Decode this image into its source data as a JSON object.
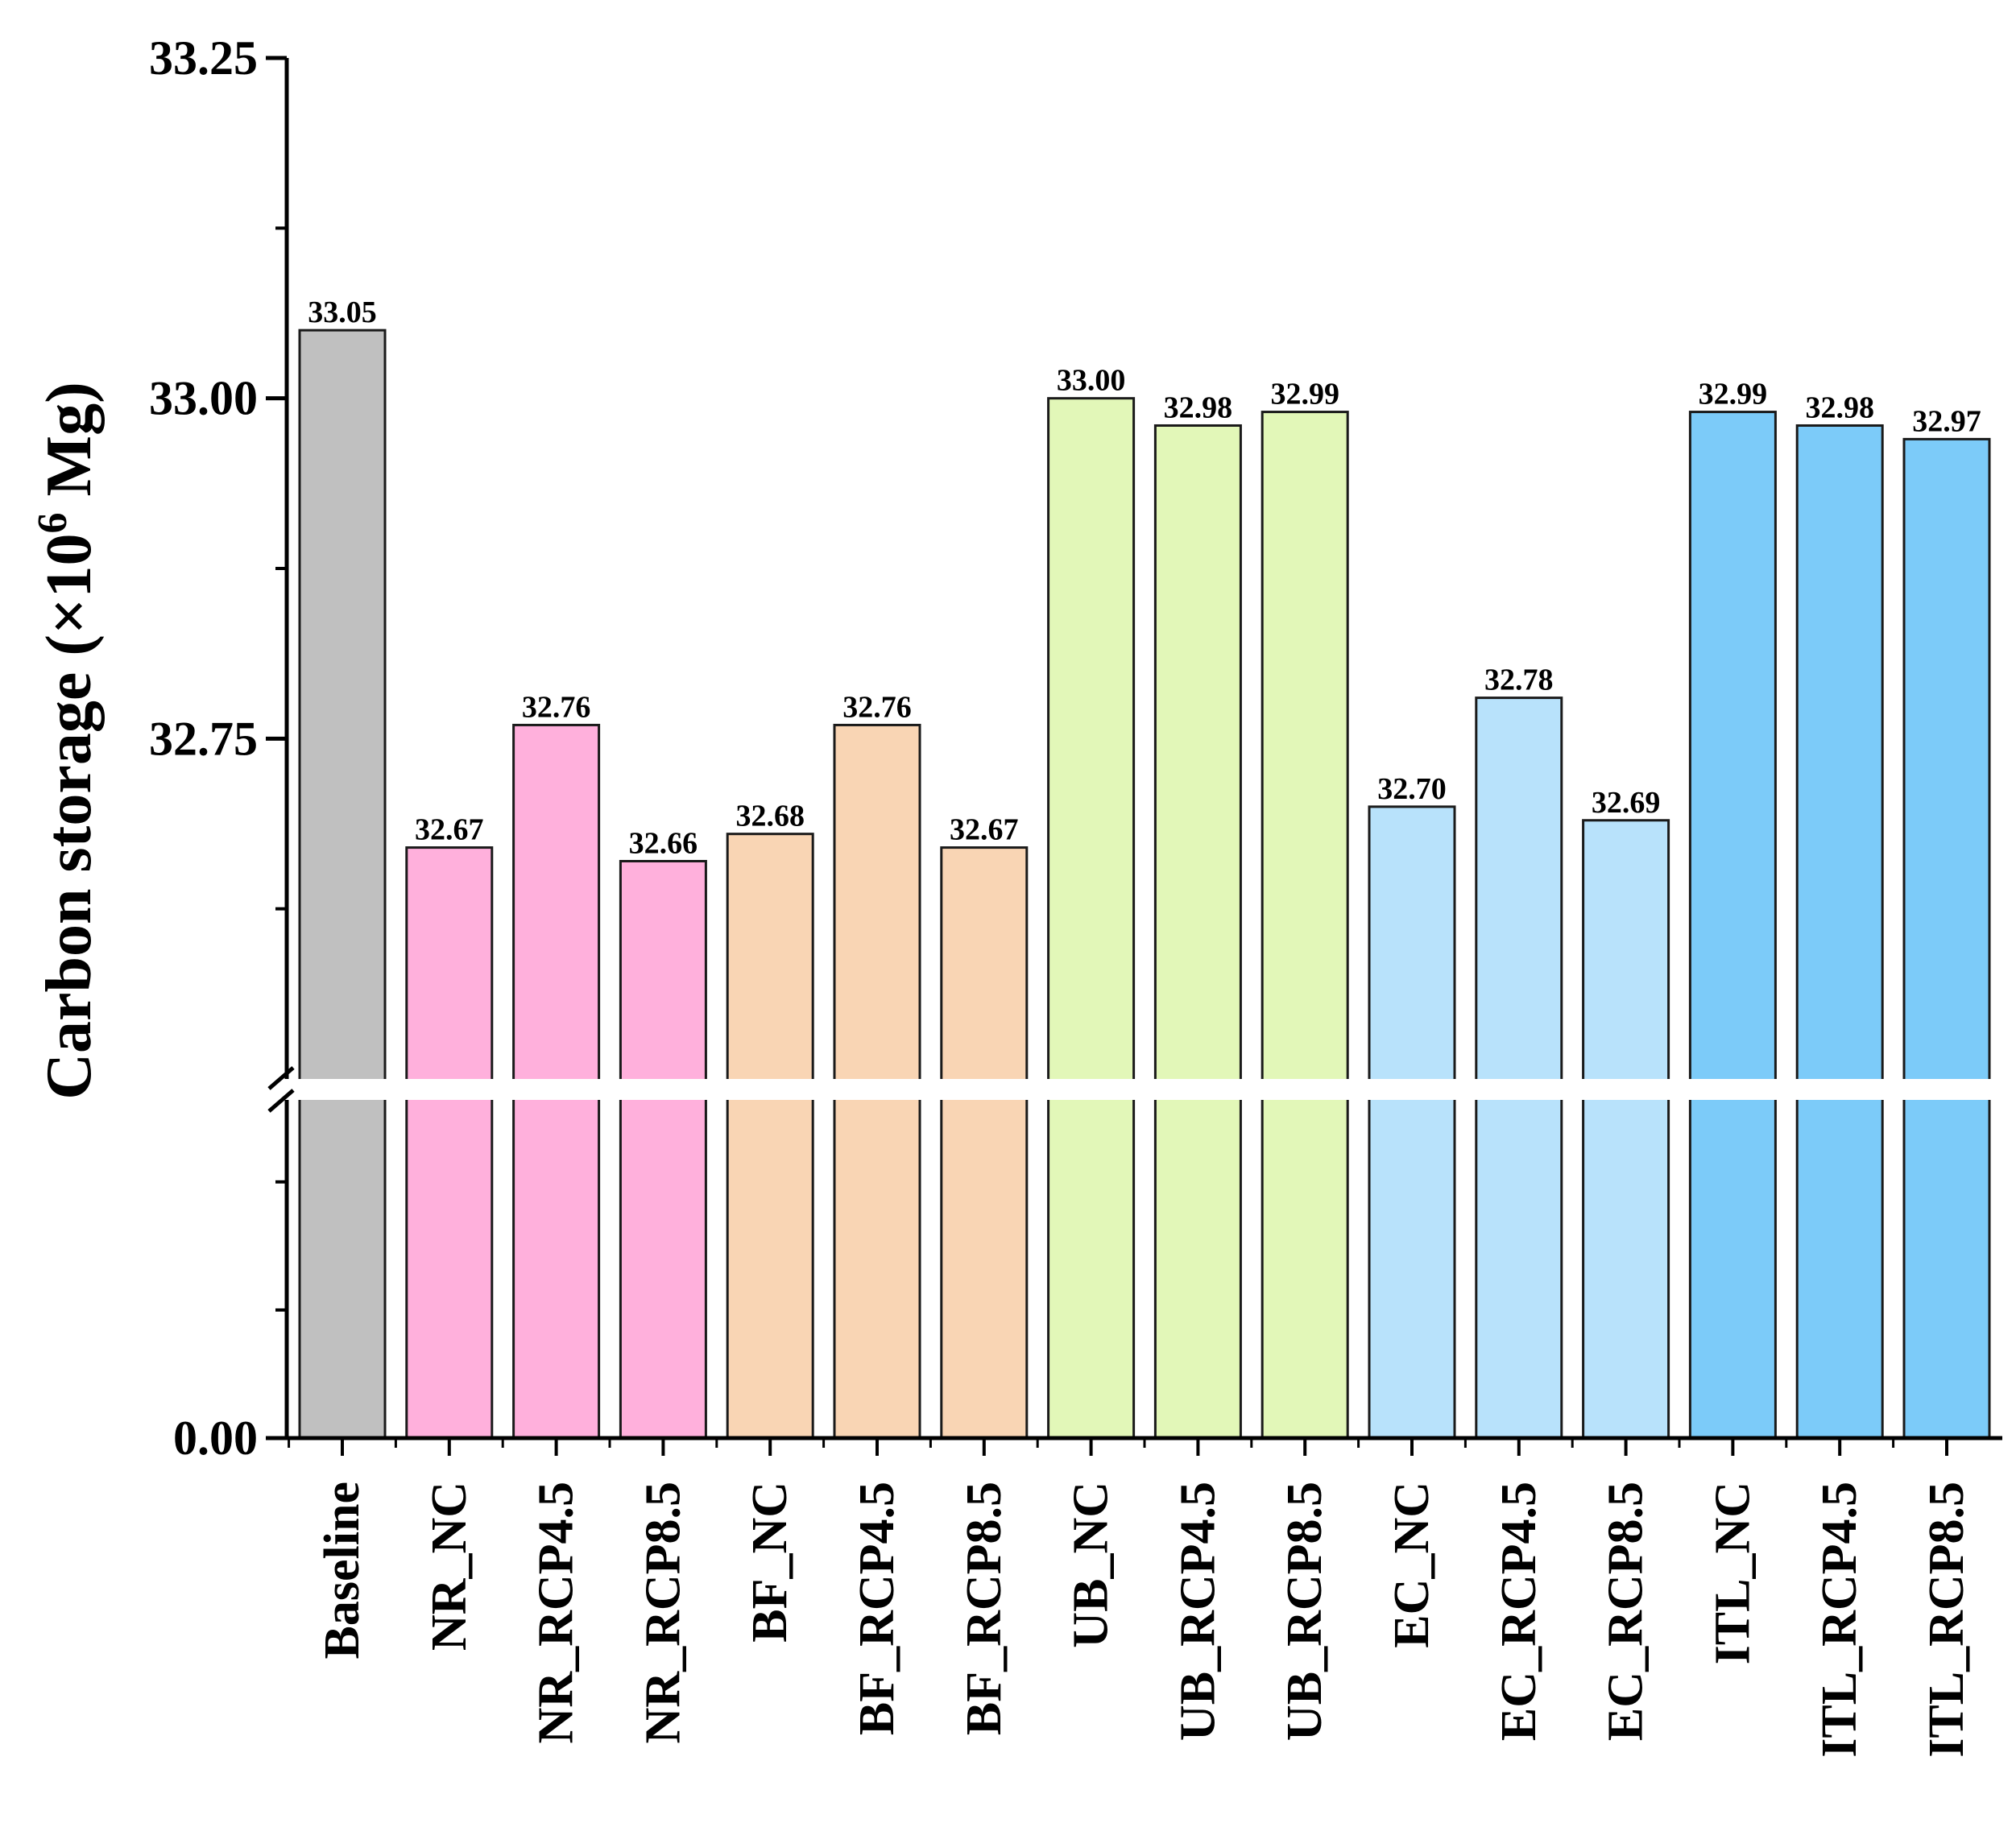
{
  "chart_data": {
    "type": "bar",
    "title": "",
    "xlabel": "",
    "ylabel": "Carbon storage (×10⁶ Mg)",
    "ylabel_main": "Carbon storage (×10",
    "ylabel_sup": "6",
    "ylabel_tail": " Mg)",
    "axis_break": true,
    "ylim_upper_segment": [
      32.5,
      33.25
    ],
    "ylim_lower_segment": [
      0,
      1
    ],
    "y_ticks": [
      {
        "value": 0,
        "label": "0.00"
      },
      {
        "value": 32.75,
        "label": "32.75"
      },
      {
        "value": 33.0,
        "label": "33.00"
      },
      {
        "value": 33.25,
        "label": "33.25"
      }
    ],
    "categories": [
      "Baseline",
      "NR_NC",
      "NR_RCP4.5",
      "NR_RCP8.5",
      "BF_NC",
      "BF_RCP4.5",
      "BF_RCP8.5",
      "UB_NC",
      "UB_RCP4.5",
      "UB_RCP8.5",
      "EC_NC",
      "EC_RCP4.5",
      "EC_RCP8.5",
      "ITL_NC",
      "ITL_RCP4.5",
      "ITL_RCP8.5"
    ],
    "values": [
      33.05,
      32.67,
      32.76,
      32.66,
      32.68,
      32.76,
      32.67,
      33.0,
      32.98,
      32.99,
      32.7,
      32.78,
      32.69,
      32.99,
      32.98,
      32.97
    ],
    "value_labels": [
      "33.05",
      "32.67",
      "32.76",
      "32.66",
      "32.68",
      "32.76",
      "32.67",
      "33.00",
      "32.98",
      "32.99",
      "32.70",
      "32.78",
      "32.69",
      "32.99",
      "32.98",
      "32.97"
    ],
    "bar_colors": [
      "#c0c0c0",
      "#ffb0dc",
      "#ffb0dc",
      "#ffb0dc",
      "#f9d5b4",
      "#f9d5b4",
      "#f9d5b4",
      "#e2f7b8",
      "#e2f7b8",
      "#e2f7b8",
      "#b8e2fb",
      "#b8e2fb",
      "#b8e2fb",
      "#7ccbf9",
      "#7ccbf9",
      "#7ccbf9"
    ],
    "grid": false,
    "legend": "none"
  }
}
